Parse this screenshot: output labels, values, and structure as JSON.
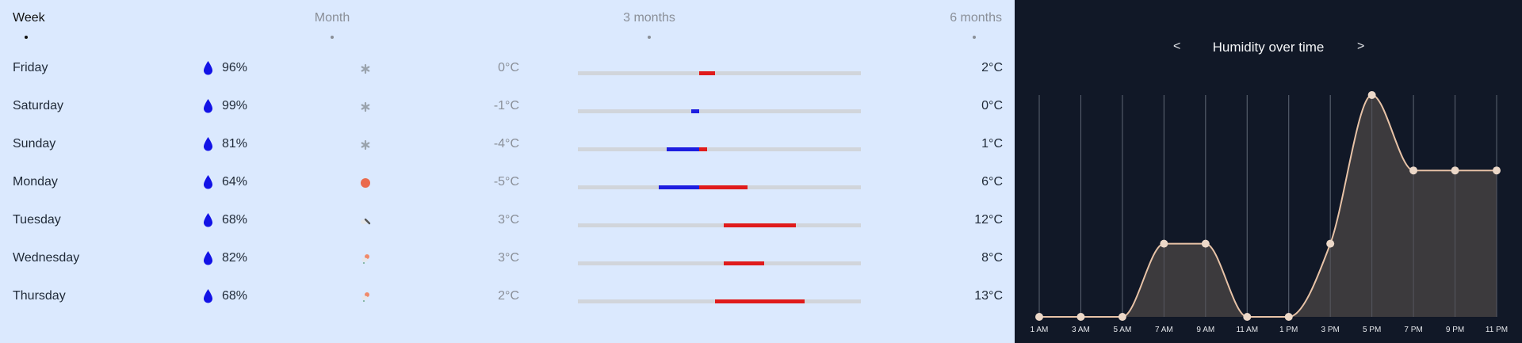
{
  "tabs": [
    {
      "label": "Week",
      "active": true
    },
    {
      "label": "Month",
      "active": false
    },
    {
      "label": "3 months",
      "active": false
    },
    {
      "label": "6 months",
      "active": false
    }
  ],
  "days": [
    {
      "day": "Friday",
      "humidity": "96%",
      "icon": "snowflake-icon",
      "min": "0°C",
      "max": "2°C",
      "min_v": 0,
      "max_v": 2
    },
    {
      "day": "Saturday",
      "humidity": "99%",
      "icon": "snowflake-icon",
      "min": "-1°C",
      "max": "0°C",
      "min_v": -1,
      "max_v": 0
    },
    {
      "day": "Sunday",
      "humidity": "81%",
      "icon": "snowflake-icon",
      "min": "-4°C",
      "max": "1°C",
      "min_v": -4,
      "max_v": 1
    },
    {
      "day": "Monday",
      "humidity": "64%",
      "icon": "sun-icon",
      "min": "-5°C",
      "max": "6°C",
      "min_v": -5,
      "max_v": 6
    },
    {
      "day": "Tuesday",
      "humidity": "68%",
      "icon": "cloud-rain-icon",
      "min": "3°C",
      "max": "12°C",
      "min_v": 3,
      "max_v": 12
    },
    {
      "day": "Wednesday",
      "humidity": "82%",
      "icon": "sun-cloud-rain-icon",
      "min": "3°C",
      "max": "8°C",
      "min_v": 3,
      "max_v": 8
    },
    {
      "day": "Thursday",
      "humidity": "68%",
      "icon": "sun-cloud-rain-icon",
      "min": "2°C",
      "max": "13°C",
      "min_v": 2,
      "max_v": 13
    }
  ],
  "colors": {
    "cold": "#1d1de0",
    "warm": "#e01b1b",
    "drop": "#1212e6",
    "track": "#d1d5db"
  },
  "chart": {
    "prev_label": "<",
    "next_label": ">",
    "title": "Humidity over time"
  },
  "chart_data": {
    "type": "area",
    "title": "Humidity over time",
    "x": [
      "1 AM",
      "3 AM",
      "5 AM",
      "7 AM",
      "9 AM",
      "11 AM",
      "1 PM",
      "3 PM",
      "5 PM",
      "7 PM",
      "9 PM",
      "11 PM"
    ],
    "series": [
      {
        "values": [
          0,
          0,
          0,
          33,
          33,
          0,
          0,
          33,
          100,
          66,
          66,
          66
        ]
      }
    ],
    "ylim": [
      0,
      100
    ],
    "grid": "vertical",
    "fill": "#3f3c3e",
    "line": "#e8c3a7",
    "point": "#ecd8c8"
  }
}
